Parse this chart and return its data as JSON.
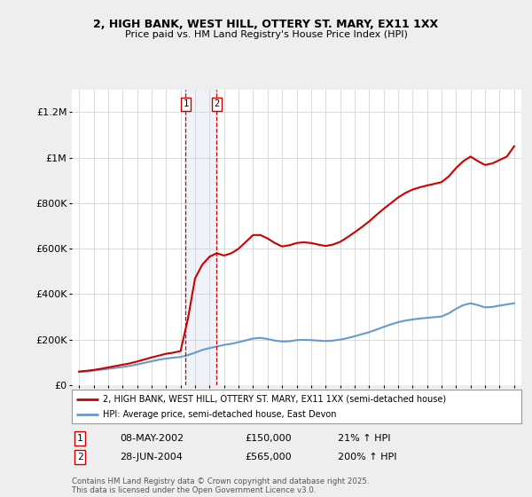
{
  "title": "2, HIGH BANK, WEST HILL, OTTERY ST. MARY, EX11 1XX",
  "subtitle": "Price paid vs. HM Land Registry's House Price Index (HPI)",
  "ylim": [
    0,
    1300000
  ],
  "yticks": [
    0,
    200000,
    400000,
    600000,
    800000,
    1000000,
    1200000
  ],
  "ytick_labels": [
    "£0",
    "£200K",
    "£400K",
    "£600K",
    "£800K",
    "£1M",
    "£1.2M"
  ],
  "legend_line1": "2, HIGH BANK, WEST HILL, OTTERY ST. MARY, EX11 1XX (semi-detached house)",
  "legend_line2": "HPI: Average price, semi-detached house, East Devon",
  "transaction1_label": "1",
  "transaction1_date": "08-MAY-2002",
  "transaction1_price": "£150,000",
  "transaction1_hpi": "21% ↑ HPI",
  "transaction2_label": "2",
  "transaction2_date": "28-JUN-2004",
  "transaction2_price": "£565,000",
  "transaction2_hpi": "200% ↑ HPI",
  "footer": "Contains HM Land Registry data © Crown copyright and database right 2025.\nThis data is licensed under the Open Government Licence v3.0.",
  "line_color_price": "#cc0000",
  "line_color_hpi": "#6699cc",
  "background_color": "#eeeeee",
  "plot_bg_color": "#ffffff",
  "transaction1_x": 2002.35,
  "transaction2_x": 2004.49,
  "hpi_years": [
    1995,
    1995.5,
    1996,
    1996.5,
    1997,
    1997.5,
    1998,
    1998.5,
    1999,
    1999.5,
    2000,
    2000.5,
    2001,
    2001.5,
    2002,
    2002.5,
    2003,
    2003.5,
    2004,
    2004.5,
    2005,
    2005.5,
    2006,
    2006.5,
    2007,
    2007.5,
    2008,
    2008.5,
    2009,
    2009.5,
    2010,
    2010.5,
    2011,
    2011.5,
    2012,
    2012.5,
    2013,
    2013.5,
    2014,
    2014.5,
    2015,
    2015.5,
    2016,
    2016.5,
    2017,
    2017.5,
    2018,
    2018.5,
    2019,
    2019.5,
    2020,
    2020.5,
    2021,
    2021.5,
    2022,
    2022.5,
    2023,
    2023.5,
    2024,
    2024.5,
    2025
  ],
  "hpi_values": [
    58000,
    61000,
    64000,
    68000,
    72000,
    76000,
    80000,
    85000,
    91000,
    98000,
    105000,
    112000,
    117000,
    121000,
    124000,
    132000,
    143000,
    155000,
    163000,
    170000,
    177000,
    182000,
    189000,
    197000,
    205000,
    208000,
    203000,
    196000,
    192000,
    193000,
    198000,
    199000,
    198000,
    196000,
    194000,
    196000,
    200000,
    207000,
    215000,
    224000,
    233000,
    244000,
    256000,
    267000,
    277000,
    284000,
    289000,
    293000,
    296000,
    299000,
    302000,
    316000,
    336000,
    352000,
    360000,
    352000,
    342000,
    344000,
    350000,
    355000,
    360000
  ],
  "price_years": [
    1995,
    1995.5,
    1996,
    1996.5,
    1997,
    1997.5,
    1998,
    1998.5,
    1999,
    1999.5,
    2000,
    2000.5,
    2001,
    2001.5,
    2002,
    2002.5,
    2003,
    2003.5,
    2004,
    2004.5,
    2005,
    2005.5,
    2006,
    2006.5,
    2007,
    2007.5,
    2008,
    2008.5,
    2009,
    2009.5,
    2010,
    2010.5,
    2011,
    2011.5,
    2012,
    2012.5,
    2013,
    2013.5,
    2014,
    2014.5,
    2015,
    2015.5,
    2016,
    2016.5,
    2017,
    2017.5,
    2018,
    2018.5,
    2019,
    2019.5,
    2020,
    2020.5,
    2021,
    2021.5,
    2022,
    2022.5,
    2023,
    2023.5,
    2024,
    2024.5,
    2025
  ],
  "price_values": [
    60000,
    63000,
    67000,
    72000,
    78000,
    84000,
    90000,
    96000,
    104000,
    113000,
    122000,
    130000,
    138000,
    143000,
    150000,
    290000,
    470000,
    530000,
    565000,
    580000,
    570000,
    580000,
    600000,
    630000,
    660000,
    660000,
    645000,
    625000,
    610000,
    615000,
    625000,
    628000,
    625000,
    618000,
    612000,
    618000,
    630000,
    650000,
    672000,
    695000,
    720000,
    748000,
    775000,
    800000,
    825000,
    845000,
    860000,
    870000,
    878000,
    885000,
    893000,
    918000,
    955000,
    985000,
    1005000,
    985000,
    968000,
    975000,
    990000,
    1005000,
    1050000
  ]
}
